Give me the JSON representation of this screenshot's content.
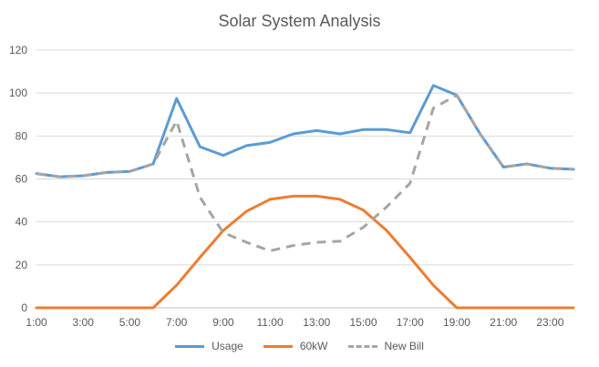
{
  "chart_data": {
    "type": "line",
    "title": "Solar System Analysis",
    "x": [
      "1:00",
      "2:00",
      "3:00",
      "4:00",
      "5:00",
      "6:00",
      "7:00",
      "8:00",
      "9:00",
      "10:00",
      "11:00",
      "12:00",
      "13:00",
      "14:00",
      "15:00",
      "16:00",
      "17:00",
      "18:00",
      "19:00",
      "20:00",
      "21:00",
      "22:00",
      "23:00",
      "24:00"
    ],
    "x_tick_labels": [
      "1:00",
      "3:00",
      "5:00",
      "7:00",
      "9:00",
      "11:00",
      "13:00",
      "15:00",
      "17:00",
      "19:00",
      "21:00",
      "23:00"
    ],
    "ylim": [
      0,
      120
    ],
    "y_ticks": [
      0,
      20,
      40,
      60,
      80,
      100,
      120
    ],
    "grid": true,
    "legend_position": "bottom",
    "series": [
      {
        "name": "Usage",
        "color": "#5B9BD5",
        "dash": "solid",
        "values": [
          62.5,
          61,
          61.5,
          63,
          63.5,
          67,
          97.5,
          75,
          71,
          75.5,
          77,
          81,
          82.5,
          81,
          83,
          83,
          81.5,
          103.5,
          99,
          81,
          65.5,
          67,
          65,
          64.5
        ]
      },
      {
        "name": "60kW",
        "color": "#ED7D31",
        "dash": "solid",
        "values": [
          0,
          0,
          0,
          0,
          0,
          0,
          10.5,
          23.5,
          36,
          45,
          50.5,
          52,
          52,
          50.5,
          45.5,
          36,
          23.5,
          10.5,
          0,
          0,
          0,
          0,
          0,
          0
        ]
      },
      {
        "name": "New Bill",
        "color": "#A5A5A5",
        "dash": "dashed",
        "values": [
          62.5,
          61,
          61.5,
          63,
          63.5,
          67,
          87,
          51.5,
          35,
          30.5,
          26.5,
          29,
          30.5,
          31,
          37.5,
          47,
          58,
          93,
          99,
          81,
          65.5,
          67,
          65,
          64.5
        ]
      }
    ]
  }
}
